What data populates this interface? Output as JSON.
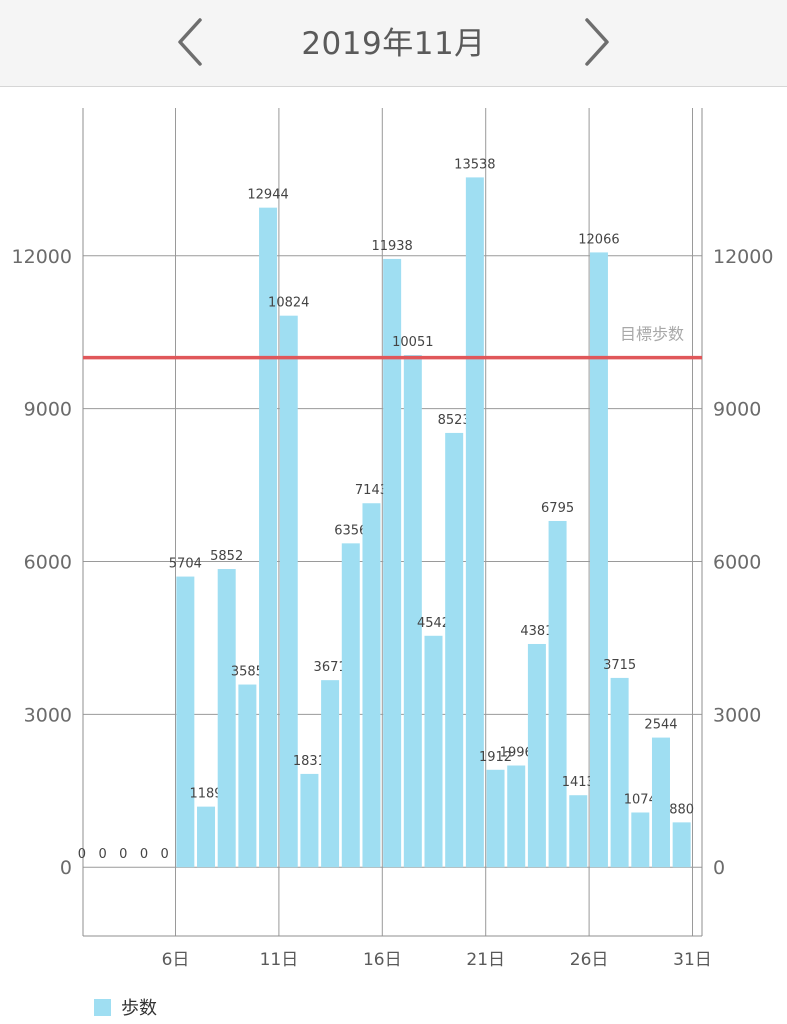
{
  "header": {
    "title": "2019年11月",
    "prev_icon": "chevron-left-icon",
    "next_icon": "chevron-right-icon"
  },
  "chart_data": {
    "type": "bar",
    "series": [
      {
        "name": "歩数",
        "color": "#9fdef2",
        "x": [
          1,
          2,
          3,
          4,
          5,
          6,
          7,
          8,
          9,
          10,
          11,
          12,
          13,
          14,
          15,
          16,
          17,
          18,
          19,
          20,
          21,
          22,
          23,
          24,
          25,
          26,
          27,
          28,
          29,
          30
        ],
        "values": [
          0,
          0,
          0,
          0,
          0,
          5704,
          1189,
          5852,
          3585,
          12944,
          10824,
          1831,
          3671,
          6356,
          7143,
          11938,
          10051,
          4542,
          8523,
          13538,
          1912,
          1996,
          4381,
          6795,
          1413,
          12066,
          3715,
          1074,
          2544,
          880
        ],
        "labels": [
          "0",
          "0",
          "0",
          "0",
          "0",
          "5704",
          "1189",
          "5852",
          "3585",
          "12944",
          "10824",
          "1831",
          "3671",
          "6356",
          "7143",
          "11938",
          "10051",
          "4542",
          "8523",
          "13538",
          "1912",
          "1996",
          "4381",
          "6795",
          "1413",
          "12066",
          "3715",
          "1074",
          "2544",
          "880"
        ]
      }
    ],
    "xlim": [
      1,
      31
    ],
    "x_ticks": [
      {
        "value": 6,
        "label": "6日"
      },
      {
        "value": 11,
        "label": "11日"
      },
      {
        "value": 16,
        "label": "16日"
      },
      {
        "value": 21,
        "label": "21日"
      },
      {
        "value": 26,
        "label": "26日"
      },
      {
        "value": 31,
        "label": "31日"
      }
    ],
    "ylim": [
      -1350,
      14900
    ],
    "y_ticks": [
      {
        "value": 0,
        "label": "0"
      },
      {
        "value": 3000,
        "label": "3000"
      },
      {
        "value": 6000,
        "label": "6000"
      },
      {
        "value": 9000,
        "label": "9000"
      },
      {
        "value": 12000,
        "label": "12000"
      }
    ],
    "target": {
      "value": 10000,
      "label": "目標歩数",
      "color": "#e0575a"
    },
    "grid": true,
    "legend": {
      "position": "bottom-left",
      "items": [
        {
          "label": "歩数",
          "color": "#9fdef2"
        }
      ]
    }
  }
}
